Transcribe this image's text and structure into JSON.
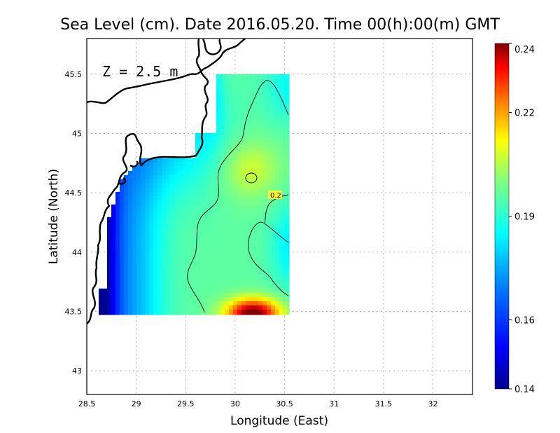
{
  "chart_data": {
    "type": "heatmap",
    "title": "Sea Level (cm). Date 2016.05.20. Time 00(h):00(m) GMT",
    "annotation": "Z = 2.5 m",
    "xlabel": "Longitude (East)",
    "ylabel": "Latitude (North)",
    "xlim": [
      28.5,
      32.4
    ],
    "ylim": [
      42.8,
      45.8
    ],
    "x_ticks": [
      "28.5",
      "29",
      "29.5",
      "30",
      "30.5",
      "31",
      "31.5",
      "32"
    ],
    "y_ticks": [
      "43",
      "43.5",
      "44",
      "44.5",
      "45",
      "45.5"
    ],
    "grid": true,
    "field_extent": {
      "lon": [
        28.62,
        30.55
      ],
      "lat": [
        43.47,
        45.5
      ]
    },
    "colorbar": {
      "min": 0.14,
      "max": 0.24,
      "tick_labels": [
        "0.14",
        "0.16",
        "0.19",
        "0.22",
        "0.24"
      ],
      "colors": [
        "#00008f",
        "#0000ff",
        "#0080ff",
        "#00ffff",
        "#80ff80",
        "#ffff00",
        "#ff8000",
        "#ff0000",
        "#800000"
      ],
      "placement": "right"
    },
    "contour_labels": [
      {
        "value": "0.2"
      }
    ],
    "colors": {
      "background": "#ffffff",
      "land_outline": "#000000",
      "grid": "#b4b4b4"
    }
  }
}
